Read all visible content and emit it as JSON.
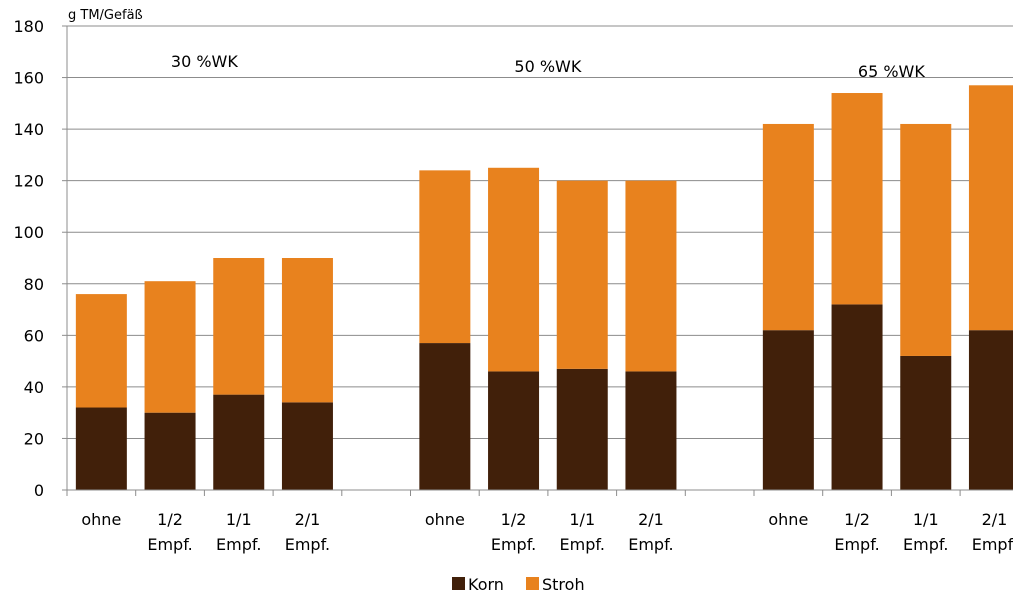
{
  "chart_data": {
    "type": "bar",
    "stacked": true,
    "ylabel": "g TM/Gefäß",
    "ylim": [
      0,
      180
    ],
    "yticks": [
      0,
      20,
      40,
      60,
      80,
      100,
      120,
      140,
      160,
      180
    ],
    "grid": true,
    "legend_position": "bottom",
    "groups": [
      {
        "label": "30 %WK",
        "categories": [
          [
            "ohne"
          ],
          [
            "1/2",
            "Empf."
          ],
          [
            "1/1",
            "Empf."
          ],
          [
            "2/1",
            "Empf."
          ]
        ],
        "Korn": [
          32,
          30,
          37,
          34
        ],
        "Stroh": [
          44,
          51,
          53,
          56
        ]
      },
      {
        "label": "50 %WK",
        "categories": [
          [
            "ohne"
          ],
          [
            "1/2",
            "Empf."
          ],
          [
            "1/1",
            "Empf."
          ],
          [
            "2/1",
            "Empf."
          ]
        ],
        "Korn": [
          57,
          46,
          47,
          46
        ],
        "Stroh": [
          67,
          79,
          73,
          74
        ]
      },
      {
        "label": "65 %WK",
        "categories": [
          [
            "ohne"
          ],
          [
            "1/2",
            "Empf."
          ],
          [
            "1/1",
            "Empf."
          ],
          [
            "2/1",
            "Empf."
          ]
        ],
        "Korn": [
          62,
          72,
          52,
          62
        ],
        "Stroh": [
          80,
          82,
          90,
          95
        ]
      }
    ],
    "series": [
      {
        "name": "Korn",
        "color": "#41200a"
      },
      {
        "name": "Stroh",
        "color": "#e8821e"
      }
    ]
  }
}
